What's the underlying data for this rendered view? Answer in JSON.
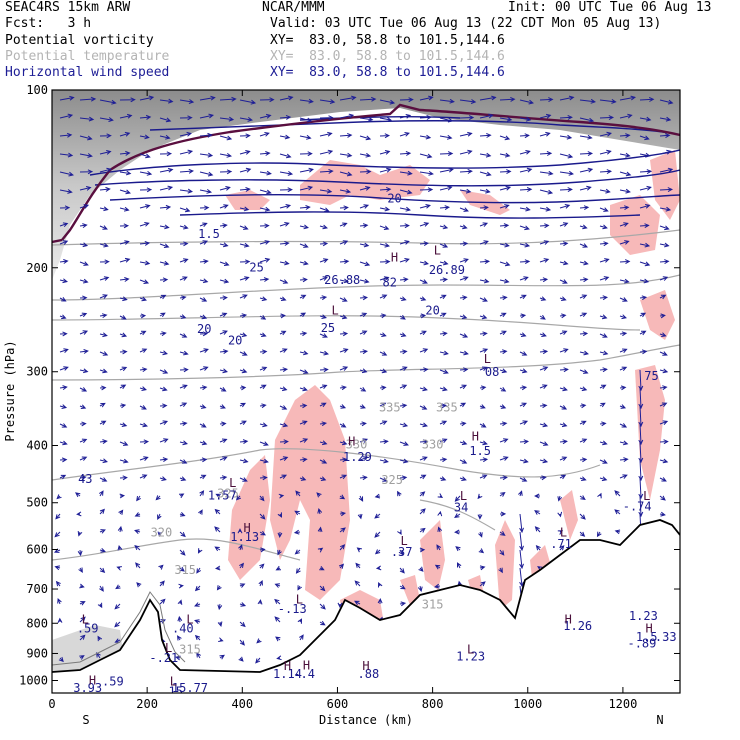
{
  "header": {
    "model": "SEAC4RS 15km ARW",
    "fcst": "Fcst:   3 h",
    "org": "NCAR/MMM",
    "init": "Init: 00 UTC Tue 06 Aug 13",
    "valid": "Valid: 03 UTC Tue 06 Aug 13 (22 CDT Mon 05 Aug 13)",
    "fields": [
      {
        "name": "Potential vorticity",
        "xy": "XY=  83.0, 58.8 to 101.5,144.6",
        "color": "#1a1a8c"
      },
      {
        "name": "Potential temperature",
        "xy": "XY=  83.0, 58.8 to 101.5,144.6",
        "color": "#b4b4b4"
      },
      {
        "name": "Horizontal wind speed",
        "xy": "XY=  83.0, 58.8 to 101.5,144.6",
        "color": "#1e1e96"
      }
    ]
  },
  "chart_data": {
    "type": "cross-section",
    "xlabel": "Distance (km)",
    "ylabel": "Pressure (hPa)",
    "xlim": [
      0,
      1320
    ],
    "ylim": [
      1050,
      100
    ],
    "y_scale": "log",
    "x_ticks": [
      0,
      200,
      400,
      600,
      800,
      1000,
      1200
    ],
    "y_ticks": [
      100,
      200,
      300,
      400,
      500,
      600,
      700,
      800,
      900,
      1000
    ],
    "x_end_labels": {
      "left": "S",
      "right": "N"
    },
    "colors": {
      "pv_contour": "#1a1a8c",
      "theta_contour": "#a0a0a0",
      "wind_vector": "#1e1e96",
      "pv_shade": "#f7b9b9",
      "stratosphere_shade": "#bdbdbd",
      "terrain": "#000000",
      "tropopause": "#5a0f3f"
    },
    "theta_labels": [
      {
        "text": "315",
        "x": 280,
        "p": 660
      },
      {
        "text": "315",
        "x": 800,
        "p": 755
      },
      {
        "text": "315",
        "x": 290,
        "p": 900
      },
      {
        "text": "320",
        "x": 230,
        "p": 570
      },
      {
        "text": "325",
        "x": 370,
        "p": 490
      },
      {
        "text": "325",
        "x": 715,
        "p": 465
      },
      {
        "text": "330",
        "x": 640,
        "p": 405
      },
      {
        "text": "330",
        "x": 800,
        "p": 405
      },
      {
        "text": "335",
        "x": 710,
        "p": 350
      },
      {
        "text": "335",
        "x": 830,
        "p": 350
      }
    ],
    "pv_labels": [
      {
        "text": "1.5",
        "x": 330,
        "p": 178
      },
      {
        "text": "20",
        "x": 720,
        "p": 155
      },
      {
        "text": "25",
        "x": 430,
        "p": 203
      },
      {
        "text": "20",
        "x": 320,
        "p": 258
      },
      {
        "text": "20",
        "x": 385,
        "p": 270
      },
      {
        "text": "25",
        "x": 580,
        "p": 257
      },
      {
        "text": "26.88",
        "x": 610,
        "p": 213
      },
      {
        "text": "82",
        "x": 710,
        "p": 215
      },
      {
        "text": "26.89",
        "x": 830,
        "p": 205
      },
      {
        "text": "20",
        "x": 800,
        "p": 240
      },
      {
        "text": "08",
        "x": 925,
        "p": 305
      },
      {
        "text": "75",
        "x": 1260,
        "p": 310
      },
      {
        "text": "1.29",
        "x": 642,
        "p": 425
      },
      {
        "text": "1.5",
        "x": 900,
        "p": 415
      },
      {
        "text": "1.57",
        "x": 358,
        "p": 494
      },
      {
        "text": "43",
        "x": 70,
        "p": 463
      },
      {
        "text": "34",
        "x": 860,
        "p": 517
      },
      {
        "text": "1.13",
        "x": 405,
        "p": 580
      },
      {
        "text": ".37",
        "x": 735,
        "p": 615
      },
      {
        "text": ".71",
        "x": 1070,
        "p": 597
      },
      {
        "text": "-.74",
        "x": 1230,
        "p": 515
      },
      {
        "text": "-.13",
        "x": 505,
        "p": 768
      },
      {
        "text": "1.23",
        "x": 1243,
        "p": 790
      },
      {
        "text": ".40",
        "x": 275,
        "p": 830
      },
      {
        "text": ".59",
        "x": 75,
        "p": 830
      },
      {
        "text": "1.26",
        "x": 1105,
        "p": 822
      },
      {
        "text": "1.5",
        "x": 1250,
        "p": 858
      },
      {
        "text": ".33",
        "x": 1290,
        "p": 858
      },
      {
        "text": "-.89",
        "x": 1240,
        "p": 880
      },
      {
        "text": "-.21",
        "x": 235,
        "p": 930
      },
      {
        "text": "1.23",
        "x": 880,
        "p": 925
      },
      {
        "text": "1.14",
        "x": 495,
        "p": 990
      },
      {
        "text": "-.4",
        "x": 530,
        "p": 990
      },
      {
        "text": ".88",
        "x": 665,
        "p": 990
      },
      {
        "text": ".59",
        "x": 128,
        "p": 1020
      },
      {
        "text": "3.93",
        "x": 75,
        "p": 1045
      },
      {
        "text": "15.77",
        "x": 290,
        "p": 1045
      },
      {
        "text": "15",
        "x": 260,
        "p": 1060
      }
    ],
    "extrema_marks": [
      {
        "text": "H",
        "x": 720,
        "p": 195
      },
      {
        "text": "L",
        "x": 810,
        "p": 190
      },
      {
        "text": "L",
        "x": 595,
        "p": 240
      },
      {
        "text": "L",
        "x": 915,
        "p": 290
      },
      {
        "text": "H",
        "x": 630,
        "p": 400
      },
      {
        "text": "H",
        "x": 890,
        "p": 392
      },
      {
        "text": "L",
        "x": 380,
        "p": 470
      },
      {
        "text": "L",
        "x": 865,
        "p": 495
      },
      {
        "text": "H",
        "x": 410,
        "p": 560
      },
      {
        "text": "L",
        "x": 740,
        "p": 590
      },
      {
        "text": "L",
        "x": 1075,
        "p": 570
      },
      {
        "text": "L",
        "x": 1250,
        "p": 495
      },
      {
        "text": "L",
        "x": 520,
        "p": 740
      },
      {
        "text": "L",
        "x": 290,
        "p": 800
      },
      {
        "text": "L",
        "x": 70,
        "p": 800
      },
      {
        "text": "H",
        "x": 1085,
        "p": 800
      },
      {
        "text": "H",
        "x": 1255,
        "p": 830
      },
      {
        "text": "L",
        "x": 245,
        "p": 895
      },
      {
        "text": "L",
        "x": 880,
        "p": 900
      },
      {
        "text": "H",
        "x": 495,
        "p": 960
      },
      {
        "text": "H",
        "x": 535,
        "p": 958
      },
      {
        "text": "H",
        "x": 660,
        "p": 960
      },
      {
        "text": "H",
        "x": 85,
        "p": 1015
      },
      {
        "text": "L",
        "x": 255,
        "p": 1020
      }
    ]
  }
}
